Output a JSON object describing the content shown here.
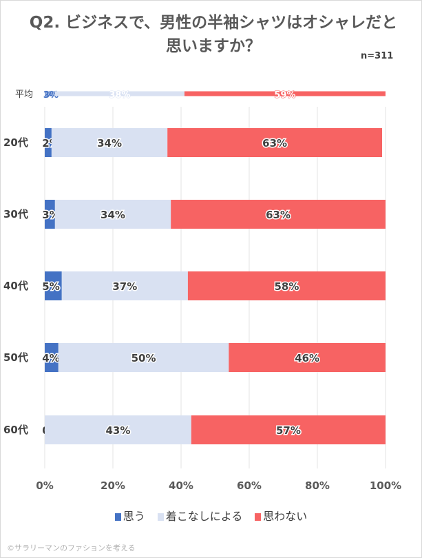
{
  "chart_data": {
    "type": "bar",
    "orientation": "horizontal-stacked-100",
    "title": "Q2. ビジネスで、男性の半袖シャツはオシャレだと思いますか？",
    "subtitle": "n=311",
    "categories": [
      "平均",
      "20代",
      "30代",
      "40代",
      "50代",
      "60代"
    ],
    "series": [
      {
        "name": "思う",
        "color": "#4472c4",
        "values": [
          3,
          2,
          3,
          5,
          4,
          0
        ]
      },
      {
        "name": "着こなしによる",
        "color": "#d9e1f2",
        "values": [
          38,
          34,
          34,
          37,
          50,
          43
        ]
      },
      {
        "name": "思わない",
        "color": "#f76363",
        "values": [
          59,
          63,
          63,
          58,
          46,
          57
        ]
      }
    ],
    "xticks": [
      "0%",
      "20%",
      "40%",
      "60%",
      "80%",
      "100%"
    ],
    "xlim": [
      0,
      100
    ],
    "grid": true,
    "legend": "bottom"
  },
  "credit": "©サラリーマンのファションを考える"
}
